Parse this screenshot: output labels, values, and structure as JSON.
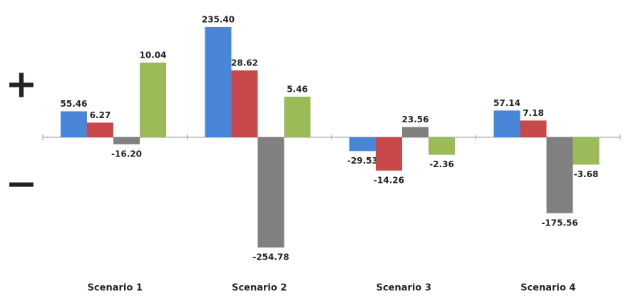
{
  "chart_data": {
    "type": "bar",
    "plus_sign": "+",
    "minus_sign": "−",
    "categories": [
      "Scenario 1",
      "Scenario 2",
      "Scenario 3",
      "Scenario 4"
    ],
    "series": [
      {
        "color": "#4a86d8",
        "values": [
          55.46,
          235.4,
          -29.53,
          57.14
        ],
        "value_labels": [
          "55.46",
          "235.40",
          "-29.53",
          "57.14"
        ]
      },
      {
        "color": "#c9484a",
        "values": [
          6.27,
          28.62,
          -14.26,
          7.18
        ],
        "value_labels": [
          "6.27",
          "28.62",
          "-14.26",
          "7.18"
        ]
      },
      {
        "color": "#808080",
        "values": [
          -16.2,
          -254.78,
          23.56,
          -175.56
        ],
        "value_labels": [
          "-16.20",
          "-254.78",
          "23.56",
          "-175.56"
        ]
      },
      {
        "color": "#9bbb59",
        "values": [
          10.04,
          5.46,
          -2.36,
          -3.68
        ],
        "value_labels": [
          "10.04",
          "5.46",
          "-2.36",
          "-3.68"
        ]
      }
    ]
  }
}
